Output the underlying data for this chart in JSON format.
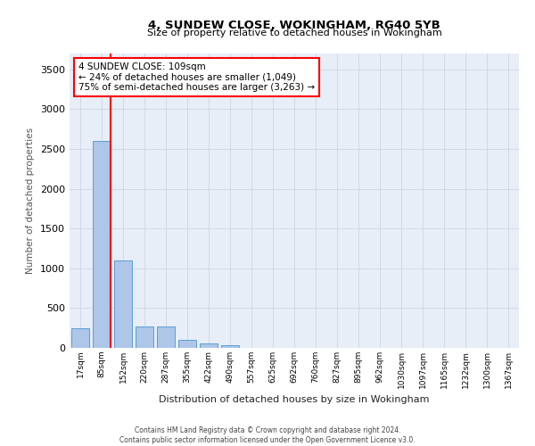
{
  "title": "4, SUNDEW CLOSE, WOKINGHAM, RG40 5YB",
  "subtitle": "Size of property relative to detached houses in Wokingham",
  "xlabel": "Distribution of detached houses by size in Wokingham",
  "ylabel": "Number of detached properties",
  "bar_labels": [
    "17sqm",
    "85sqm",
    "152sqm",
    "220sqm",
    "287sqm",
    "355sqm",
    "422sqm",
    "490sqm",
    "557sqm",
    "625sqm",
    "692sqm",
    "760sqm",
    "827sqm",
    "895sqm",
    "962sqm",
    "1030sqm",
    "1097sqm",
    "1165sqm",
    "1232sqm",
    "1300sqm",
    "1367sqm"
  ],
  "bar_values": [
    250,
    2600,
    1100,
    270,
    270,
    100,
    60,
    30,
    0,
    0,
    0,
    0,
    0,
    0,
    0,
    0,
    0,
    0,
    0,
    0,
    0
  ],
  "bar_color": "#aec6e8",
  "bar_edge_color": "#5a9fd4",
  "property_line_color": "red",
  "annotation_line1": "4 SUNDEW CLOSE: 109sqm",
  "annotation_line2": "← 24% of detached houses are smaller (1,049)",
  "annotation_line3": "75% of semi-detached houses are larger (3,263) →",
  "annotation_box_color": "white",
  "annotation_box_edge_color": "red",
  "ylim": [
    0,
    3700
  ],
  "yticks": [
    0,
    500,
    1000,
    1500,
    2000,
    2500,
    3000,
    3500
  ],
  "grid_color": "#d0d8e8",
  "background_color": "#e8eef8",
  "footer1": "Contains HM Land Registry data © Crown copyright and database right 2024.",
  "footer2": "Contains public sector information licensed under the Open Government Licence v3.0."
}
